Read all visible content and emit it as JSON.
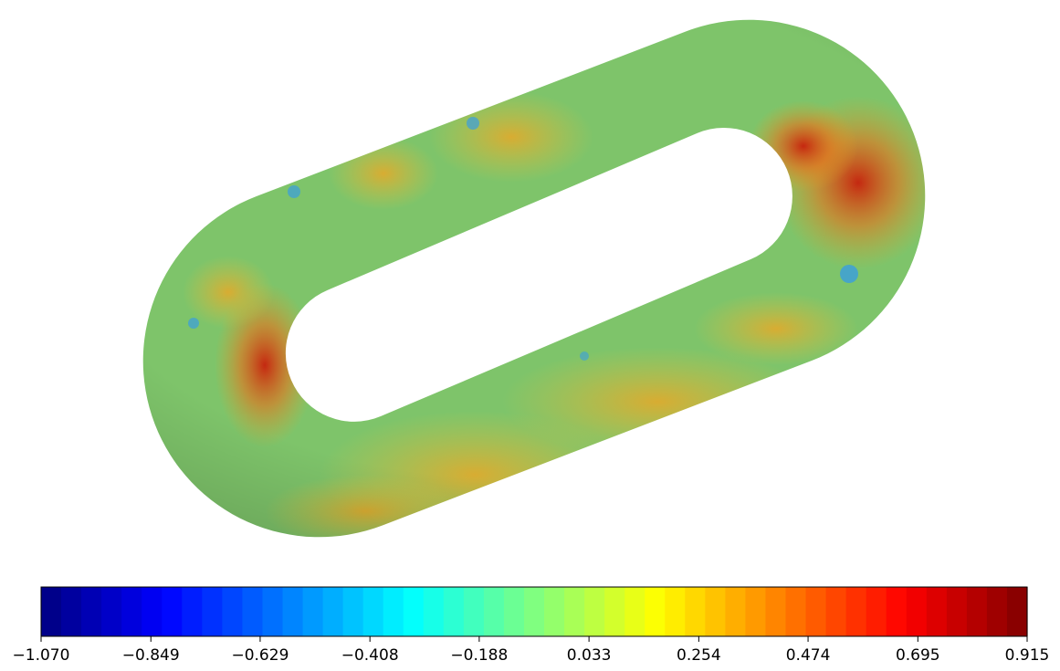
{
  "chart_data": {
    "type": "colorbar",
    "colormap": "jet",
    "xlim": [
      -1.07,
      0.915
    ],
    "xticks": [
      {
        "value": -1.07,
        "label": "−1.070"
      },
      {
        "value": -0.849,
        "label": "−0.849"
      },
      {
        "value": -0.629,
        "label": "−0.629"
      },
      {
        "value": -0.408,
        "label": "−0.408"
      },
      {
        "value": -0.188,
        "label": "−0.188"
      },
      0.033,
      0.254,
      0.474,
      0.695,
      0.915
    ]
  }
}
